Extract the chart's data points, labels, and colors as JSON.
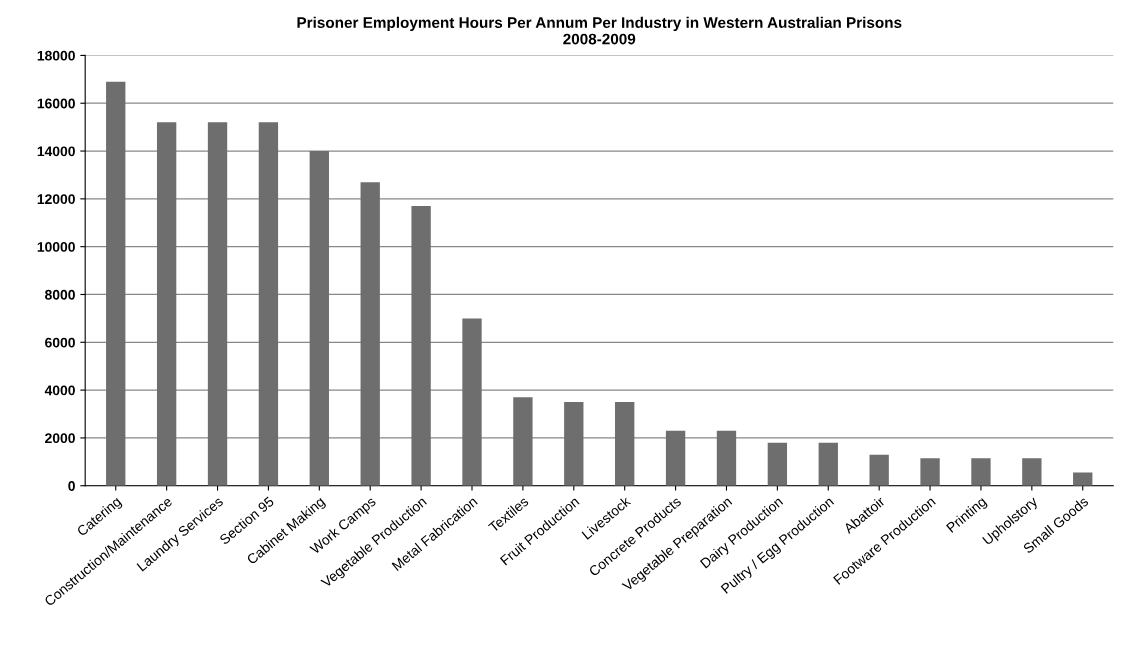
{
  "chart_data": {
    "type": "bar",
    "title": "Prisoner Employment Hours Per Annum Per Industry in Western Australian Prisons\n2008-2009",
    "categories": [
      "Catering",
      "Construction/Maintenance",
      "Laundry Services",
      "Section 95",
      "Cabinet Making",
      "Work Camps",
      "Vegetable Production",
      "Metal Fabrication",
      "Textiles",
      "Fruit Production",
      "Livestock",
      "Concrete Products",
      "Vegetable Preparation",
      "Dairy Production",
      "Pultry / Egg Production",
      "Abattoir",
      "Footware Production",
      "Printing",
      "Upholstory",
      "Small Goods"
    ],
    "values": [
      16900,
      15200,
      15200,
      15200,
      14000,
      12700,
      11700,
      7000,
      3700,
      3500,
      3500,
      2300,
      2300,
      1800,
      1800,
      1300,
      1150,
      1150,
      1150,
      550
    ],
    "color": "#6e6e6e",
    "ylim": [
      0,
      18000
    ],
    "yticks": [
      0,
      2000,
      4000,
      6000,
      8000,
      10000,
      12000,
      14000,
      16000,
      18000
    ],
    "grid": "y",
    "legend": false
  }
}
